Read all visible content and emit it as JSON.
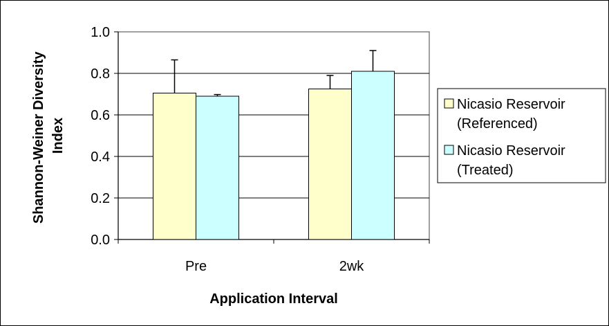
{
  "chart_data": {
    "type": "bar",
    "title": "",
    "xlabel": "Application Interval",
    "ylabel": "Shannon-Weiner Diversity Index",
    "ylabel_lines": [
      "Shannon-Weiner Diversity",
      "Index"
    ],
    "categories": [
      "Pre",
      "2wk"
    ],
    "ylim": [
      0.0,
      1.0
    ],
    "yticks": [
      0.0,
      0.2,
      0.4,
      0.6,
      0.8,
      1.0
    ],
    "ytick_labels": [
      "0.0",
      "0.2",
      "0.4",
      "0.6",
      "0.8",
      "1.0"
    ],
    "grid": true,
    "legend_position": "right",
    "series": [
      {
        "name": "Nicasio Reservoir (Referenced)",
        "legend_lines": [
          "Nicasio Reservoir",
          "(Referenced)"
        ],
        "color": "#FFFFCC",
        "values": [
          0.705,
          0.725
        ],
        "errors": [
          0.16,
          0.065
        ]
      },
      {
        "name": "Nicasio Reservoir (Treated)",
        "legend_lines": [
          "Nicasio Reservoir",
          "(Treated)"
        ],
        "color": "#CCFFFF",
        "values": [
          0.69,
          0.81
        ],
        "errors": [
          0.008,
          0.1
        ]
      }
    ]
  }
}
